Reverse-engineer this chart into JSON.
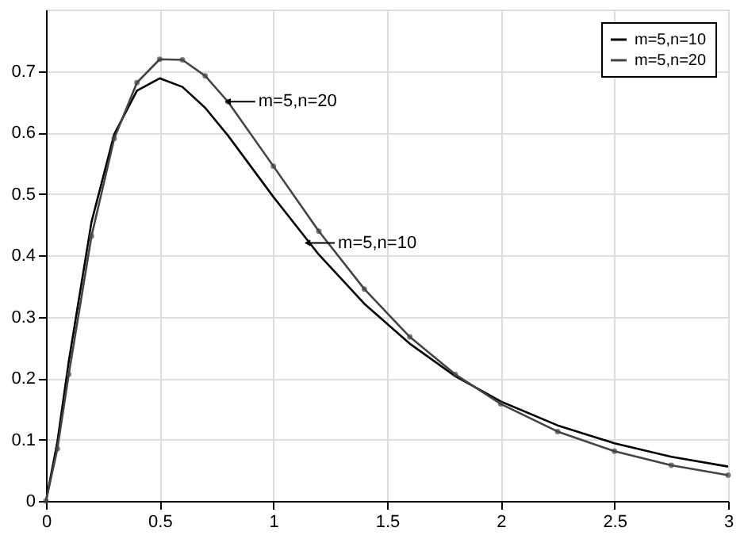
{
  "chart_data": {
    "type": "line",
    "x": [
      0,
      0.05,
      0.1,
      0.2,
      0.3,
      0.4,
      0.5,
      0.6,
      0.7,
      0.8,
      1.0,
      1.2,
      1.4,
      1.6,
      1.8,
      2.0,
      2.25,
      2.5,
      2.75,
      3.0
    ],
    "series": [
      {
        "name": "m=5,n=10",
        "color": "#000000",
        "marker": "none",
        "values": [
          0,
          0.096,
          0.227,
          0.454,
          0.597,
          0.668,
          0.688,
          0.674,
          0.64,
          0.595,
          0.495,
          0.401,
          0.321,
          0.256,
          0.203,
          0.162,
          0.123,
          0.094,
          0.072,
          0.056
        ]
      },
      {
        "name": "m=5,n=20",
        "color": "#444444",
        "marker": "circle",
        "values": [
          0,
          0.085,
          0.206,
          0.431,
          0.59,
          0.681,
          0.719,
          0.718,
          0.692,
          0.65,
          0.545,
          0.439,
          0.345,
          0.267,
          0.206,
          0.158,
          0.113,
          0.081,
          0.058,
          0.042
        ]
      }
    ],
    "xlim": [
      0,
      3
    ],
    "xticks": [
      0,
      0.5,
      1,
      1.5,
      2,
      2.5,
      3
    ],
    "ylim": [
      0,
      0.8
    ],
    "yticks": [
      0,
      0.1,
      0.2,
      0.3,
      0.4,
      0.5,
      0.6,
      0.7
    ],
    "grid": true,
    "legend": "top right",
    "line_style": "solid",
    "annotations": [
      {
        "text": "m=5,n=20",
        "x": 0.8,
        "y": 0.65
      },
      {
        "text": "m=5,n=10",
        "x": 1.15,
        "y": 0.42
      }
    ]
  }
}
